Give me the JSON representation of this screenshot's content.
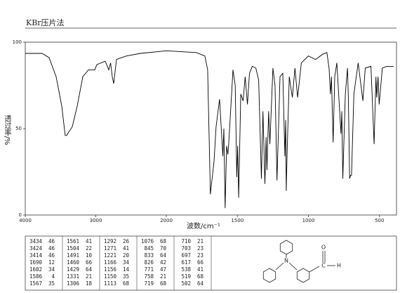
{
  "chart_data": {
    "type": "line",
    "title": "KBr压片法",
    "x_label": "波数/cm⁻¹",
    "y_label": "透过率/%",
    "xlim": [
      4000,
      400
    ],
    "x_scale_break": 2000,
    "ylim": [
      0,
      100
    ],
    "xticks": [
      4000,
      3000,
      2000,
      1500,
      1000,
      500
    ],
    "yticks": [
      0,
      50,
      100
    ],
    "color": "#000000",
    "x": [
      4000,
      3761,
      3662,
      3562,
      3483,
      3434,
      3424,
      3414,
      3383,
      3333,
      3264,
      3184,
      3104,
      3065,
      3015,
      2985,
      2866,
      2816,
      2790,
      2766,
      2746,
      2706,
      2567,
      2368,
      2000,
      1788,
      1729,
      1709,
      1690,
      1664,
      1650,
      1625,
      1602,
      1595,
      1586,
      1576,
      1567,
      1561,
      1531,
      1515,
      1504,
      1498,
      1491,
      1476,
      1460,
      1445,
      1429,
      1415,
      1395,
      1370,
      1350,
      1331,
      1320,
      1306,
      1298,
      1292,
      1280,
      1271,
      1250,
      1235,
      1221,
      1200,
      1180,
      1166,
      1160,
      1156,
      1150,
      1135,
      1113,
      1095,
      1076,
      1050,
      1000,
      950,
      900,
      870,
      855,
      845,
      838,
      833,
      826,
      815,
      800,
      771,
      765,
      758,
      740,
      725,
      719,
      710,
      703,
      697,
      680,
      650,
      617,
      600,
      560,
      538,
      525,
      519,
      510,
      502,
      480,
      450,
      400
    ],
    "values": [
      93.5,
      93.5,
      91,
      80,
      63,
      46,
      46,
      46,
      48,
      51,
      63,
      80,
      84,
      84,
      84,
      87,
      89,
      84,
      88,
      80,
      76,
      90,
      92,
      93.5,
      95,
      94,
      92,
      84,
      12,
      31,
      51,
      67,
      34,
      50,
      4,
      40,
      35,
      41,
      84,
      75,
      22,
      40,
      10,
      70,
      66,
      80,
      64,
      82,
      86,
      85,
      78,
      21,
      60,
      18,
      45,
      26,
      60,
      41,
      85,
      75,
      20,
      80,
      82,
      34,
      55,
      14,
      35,
      80,
      68,
      85,
      68,
      88,
      92,
      90,
      93,
      94,
      85,
      70,
      80,
      64,
      42,
      80,
      88,
      47,
      60,
      21,
      70,
      85,
      68,
      21,
      23,
      23,
      70,
      88,
      66,
      85,
      86,
      41,
      80,
      68,
      80,
      64,
      85,
      86,
      86
    ]
  },
  "peak_table": {
    "columns": [
      [
        [
          3434,
          46
        ],
        [
          3424,
          46
        ],
        [
          3414,
          46
        ],
        [
          1690,
          12
        ],
        [
          1602,
          34
        ],
        [
          1586,
          4
        ],
        [
          1567,
          35
        ]
      ],
      [
        [
          1561,
          41
        ],
        [
          1504,
          22
        ],
        [
          1491,
          10
        ],
        [
          1460,
          66
        ],
        [
          1429,
          64
        ],
        [
          1331,
          21
        ],
        [
          1306,
          18
        ]
      ],
      [
        [
          1292,
          26
        ],
        [
          1271,
          41
        ],
        [
          1221,
          20
        ],
        [
          1166,
          34
        ],
        [
          1156,
          14
        ],
        [
          1150,
          35
        ],
        [
          1113,
          68
        ]
      ],
      [
        [
          1076,
          68
        ],
        [
          845,
          70
        ],
        [
          833,
          64
        ],
        [
          826,
          42
        ],
        [
          771,
          47
        ],
        [
          758,
          21
        ],
        [
          719,
          68
        ]
      ],
      [
        [
          710,
          21
        ],
        [
          703,
          23
        ],
        [
          697,
          23
        ],
        [
          617,
          66
        ],
        [
          538,
          41
        ],
        [
          519,
          68
        ],
        [
          502,
          64
        ]
      ]
    ]
  },
  "structure": {
    "labels": [
      "N",
      "O",
      "C",
      "H"
    ]
  }
}
